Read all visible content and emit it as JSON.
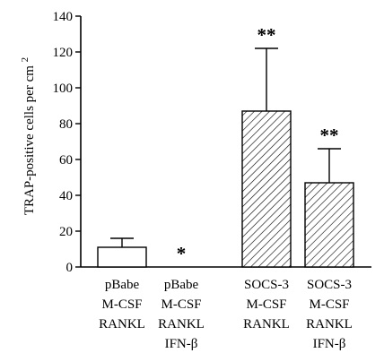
{
  "chart_data": {
    "type": "bar",
    "title": "",
    "xlabel": "",
    "ylabel": "TRAP-positive cells per cm",
    "ylabel_superscript": "2",
    "ylim": [
      0,
      140
    ],
    "yticks": [
      0,
      20,
      40,
      60,
      80,
      100,
      120,
      140
    ],
    "grid": false,
    "categories": [
      [
        "pBabe",
        "M-CSF",
        "RANKL"
      ],
      [
        "pBabe",
        "M-CSF",
        "RANKL",
        "IFN-β"
      ],
      [
        "SOCS-3",
        "M-CSF",
        "RANKL"
      ],
      [
        "SOCS-3",
        "M-CSF",
        "RANKL",
        "IFN-β"
      ]
    ],
    "values": [
      11,
      0,
      87,
      47
    ],
    "errors": [
      5,
      0,
      35,
      19
    ],
    "fills": [
      "none",
      "none",
      "hatched",
      "hatched"
    ],
    "annotations": [
      "",
      "*",
      "**",
      "**"
    ]
  }
}
